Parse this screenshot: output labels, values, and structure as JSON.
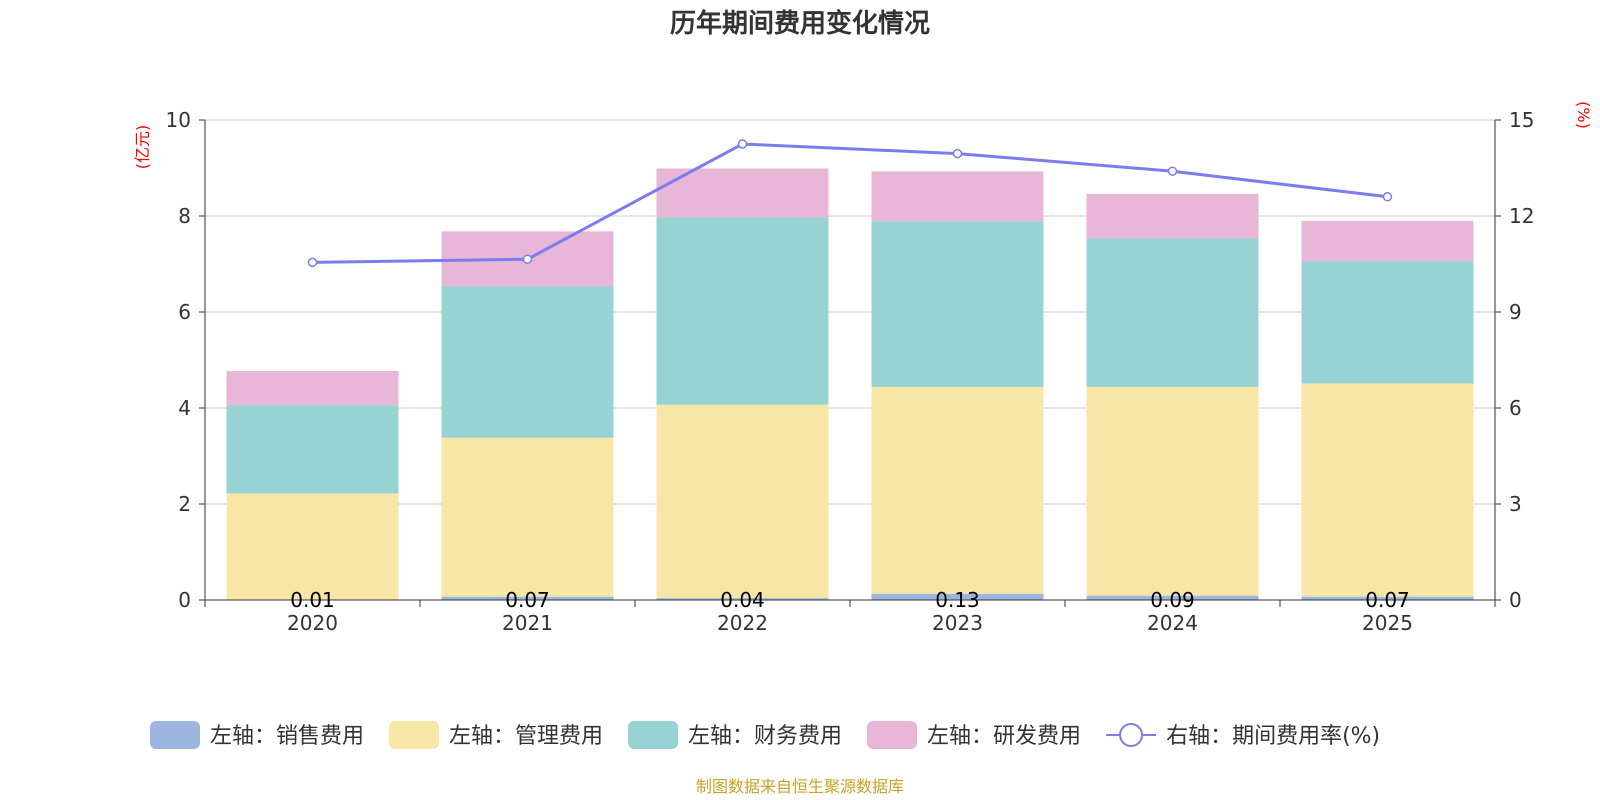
{
  "chart_data": {
    "type": "bar",
    "stacked": true,
    "title": "历年期间费用变化情况",
    "categories": [
      "2020",
      "2021",
      "2022",
      "2023",
      "2024",
      "2025"
    ],
    "y_left": {
      "unit": "(亿元)",
      "ylim": [
        0,
        10
      ],
      "ticks": [
        "0",
        "2",
        "4",
        "6",
        "8",
        "10"
      ]
    },
    "y_right": {
      "unit": "(%)",
      "ylim": [
        0,
        15
      ],
      "ticks": [
        "0",
        "3",
        "6",
        "9",
        "12",
        "15"
      ]
    },
    "series": [
      {
        "name": "左轴：销售费用",
        "axis": "left",
        "color": "#9db6e0",
        "values": [
          0.01,
          0.07,
          0.04,
          0.13,
          0.09,
          0.07
        ],
        "labels": [
          "0.01",
          "0.07",
          "0.04",
          "0.13",
          "0.09",
          "0.07"
        ]
      },
      {
        "name": "左轴：管理费用",
        "axis": "left",
        "color": "#f7e6a6",
        "values": [
          2.21,
          3.31,
          4.03,
          4.31,
          4.35,
          4.44
        ]
      },
      {
        "name": "左轴：财务费用",
        "axis": "left",
        "color": "#97d3d3",
        "values": [
          1.84,
          3.16,
          3.9,
          3.45,
          3.1,
          2.55
        ]
      },
      {
        "name": "左轴：研发费用",
        "axis": "left",
        "color": "#e8b7d7",
        "values": [
          0.71,
          1.14,
          1.02,
          1.04,
          0.92,
          0.84
        ]
      },
      {
        "name": "右轴：期间费用率(%)",
        "axis": "right",
        "type": "line",
        "color": "#7b7cf0",
        "values": [
          10.55,
          10.65,
          14.25,
          13.95,
          13.4,
          12.6
        ]
      }
    ],
    "legend_position": "bottom",
    "grid": true
  },
  "source": "制图数据来自恒生聚源数据库"
}
